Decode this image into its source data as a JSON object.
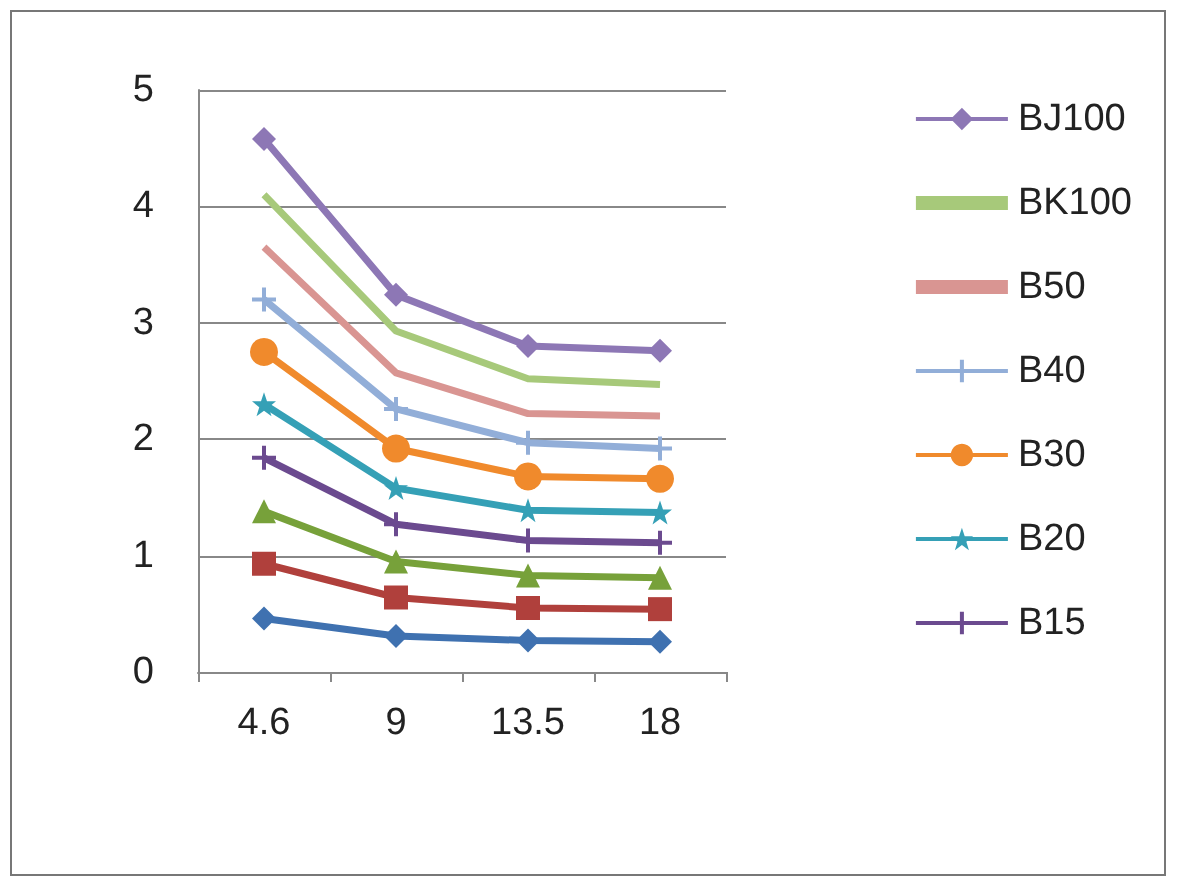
{
  "chart_data": {
    "type": "line",
    "categories": [
      "4.6",
      "9",
      "13.5",
      "18"
    ],
    "ylim": [
      0,
      5
    ],
    "yticks": [
      0,
      1,
      2,
      3,
      4,
      5
    ],
    "grid": "y",
    "legend": "right",
    "series": [
      {
        "name": "BJ100",
        "color": "#8d77b5",
        "marker": "diamond",
        "values": [
          4.58,
          3.24,
          2.8,
          2.76
        ]
      },
      {
        "name": "BK100",
        "color": "#a7c97a",
        "marker": "none",
        "values": [
          4.1,
          2.93,
          2.52,
          2.47
        ]
      },
      {
        "name": "B50",
        "color": "#d99592",
        "marker": "none",
        "values": [
          3.65,
          2.57,
          2.22,
          2.2
        ]
      },
      {
        "name": "B40",
        "color": "#92aed8",
        "marker": "cross",
        "values": [
          3.2,
          2.26,
          1.97,
          1.92
        ]
      },
      {
        "name": "B30",
        "color": "#f08a2c",
        "marker": "circle",
        "values": [
          2.75,
          1.92,
          1.68,
          1.66
        ]
      },
      {
        "name": "B20",
        "color": "#35a0b6",
        "marker": "star",
        "values": [
          2.3,
          1.58,
          1.39,
          1.37
        ]
      },
      {
        "name": "B15",
        "color": "#6b4a8f",
        "marker": "cross",
        "values": [
          1.84,
          1.27,
          1.13,
          1.11
        ]
      },
      {
        "color": "#77a13a",
        "marker": "triangle",
        "values": [
          1.38,
          0.95,
          0.83,
          0.81
        ]
      },
      {
        "color": "#b0403c",
        "marker": "square",
        "values": [
          0.93,
          0.64,
          0.55,
          0.54
        ]
      },
      {
        "color": "#3f71b0",
        "marker": "diamond",
        "values": [
          0.46,
          0.31,
          0.27,
          0.26
        ]
      }
    ]
  }
}
